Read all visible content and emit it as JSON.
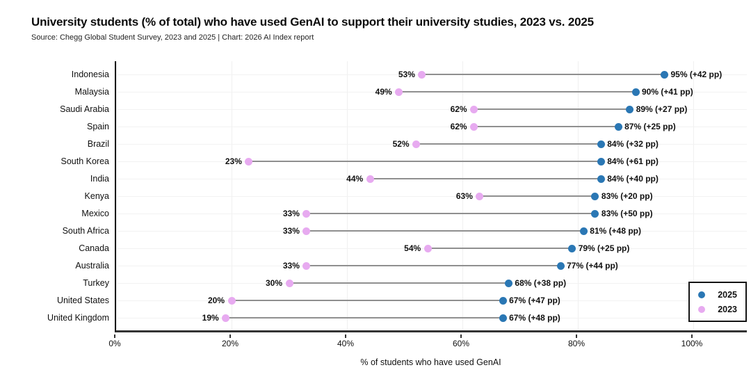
{
  "header": {
    "title": "University students (% of total) who have used GenAI to support their university studies, 2023 vs. 2025",
    "source": "Source: Chegg Global Student Survey, 2023 and 2025 | Chart: 2026 AI Index report"
  },
  "chart_data": {
    "type": "dumbbell",
    "title": "University students (% of total) who have used GenAI to support their university studies, 2023 vs. 2025",
    "xlabel": "% of students who have used GenAI",
    "xlim": [
      0,
      109
    ],
    "xticks": [
      0,
      20,
      40,
      60,
      80,
      100
    ],
    "xtick_labels": [
      "0%",
      "20%",
      "40%",
      "60%",
      "80%",
      "100%"
    ],
    "grid": true,
    "connector_color": "#8f8f8f",
    "legend": {
      "position": "lower right",
      "entries": [
        {
          "label": "2025",
          "color": "#2a77b4"
        },
        {
          "label": "2023",
          "color": "#e7aaf0"
        }
      ]
    },
    "categories": [
      "Indonesia",
      "Malaysia",
      "Saudi Arabia",
      "Spain",
      "Brazil",
      "South Korea",
      "India",
      "Kenya",
      "Mexico",
      "South Africa",
      "Canada",
      "Australia",
      "Turkey",
      "United States",
      "United Kingdom"
    ],
    "series": [
      {
        "name": "2025",
        "color": "#2a77b4",
        "values": [
          95,
          90,
          89,
          87,
          84,
          84,
          84,
          83,
          83,
          81,
          79,
          77,
          68,
          67,
          67
        ]
      },
      {
        "name": "2023",
        "color": "#e7aaf0",
        "values": [
          53,
          49,
          62,
          62,
          52,
          23,
          44,
          63,
          33,
          33,
          54,
          33,
          30,
          20,
          19
        ]
      }
    ],
    "rows": [
      {
        "country": "Indonesia",
        "v2023": 53,
        "v2025": 95,
        "label2023": "53%",
        "label2025": "95% (+42 pp)"
      },
      {
        "country": "Malaysia",
        "v2023": 49,
        "v2025": 90,
        "label2023": "49%",
        "label2025": "90% (+41 pp)"
      },
      {
        "country": "Saudi Arabia",
        "v2023": 62,
        "v2025": 89,
        "label2023": "62%",
        "label2025": "89% (+27 pp)"
      },
      {
        "country": "Spain",
        "v2023": 62,
        "v2025": 87,
        "label2023": "62%",
        "label2025": "87% (+25 pp)"
      },
      {
        "country": "Brazil",
        "v2023": 52,
        "v2025": 84,
        "label2023": "52%",
        "label2025": "84% (+32 pp)"
      },
      {
        "country": "South Korea",
        "v2023": 23,
        "v2025": 84,
        "label2023": "23%",
        "label2025": "84% (+61 pp)"
      },
      {
        "country": "India",
        "v2023": 44,
        "v2025": 84,
        "label2023": "44%",
        "label2025": "84% (+40 pp)"
      },
      {
        "country": "Kenya",
        "v2023": 63,
        "v2025": 83,
        "label2023": "63%",
        "label2025": "83% (+20 pp)"
      },
      {
        "country": "Mexico",
        "v2023": 33,
        "v2025": 83,
        "label2023": "33%",
        "label2025": "83% (+50 pp)"
      },
      {
        "country": "South Africa",
        "v2023": 33,
        "v2025": 81,
        "label2023": "33%",
        "label2025": "81% (+48 pp)"
      },
      {
        "country": "Canada",
        "v2023": 54,
        "v2025": 79,
        "label2023": "54%",
        "label2025": "79% (+25 pp)"
      },
      {
        "country": "Australia",
        "v2023": 33,
        "v2025": 77,
        "label2023": "33%",
        "label2025": "77% (+44 pp)"
      },
      {
        "country": "Turkey",
        "v2023": 30,
        "v2025": 68,
        "label2023": "30%",
        "label2025": "68% (+38 pp)"
      },
      {
        "country": "United States",
        "v2023": 20,
        "v2025": 67,
        "label2023": "20%",
        "label2025": "67% (+47 pp)"
      },
      {
        "country": "United Kingdom",
        "v2023": 19,
        "v2025": 67,
        "label2023": "19%",
        "label2025": "67% (+48 pp)"
      }
    ]
  }
}
